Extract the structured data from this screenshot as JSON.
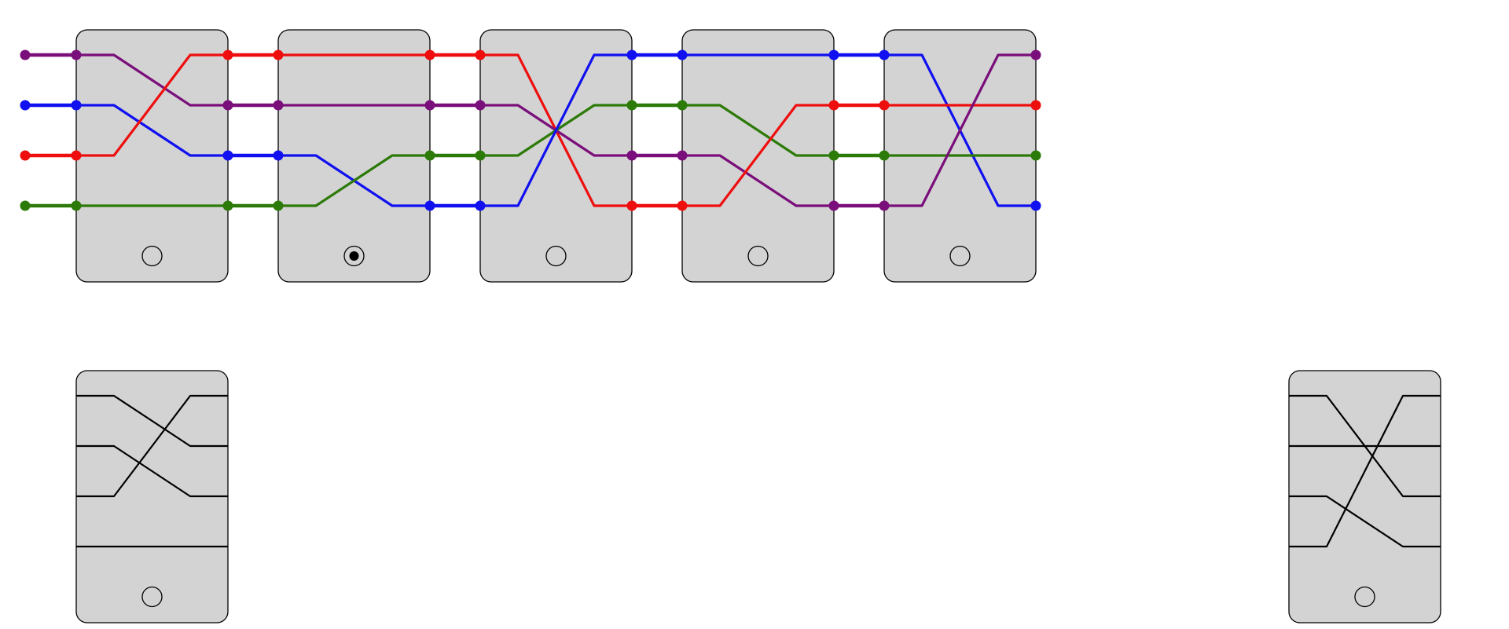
{
  "puzzle": {
    "wire_colors": [
      "#7a0e7a",
      "#1010f0",
      "#ee0e0e",
      "#2c7a08"
    ],
    "inputs": [
      0,
      1,
      2,
      3
    ],
    "chain": [
      {
        "perm": [
          1,
          2,
          0,
          3
        ],
        "selected": false
      },
      {
        "perm": [
          0,
          1,
          3,
          2
        ],
        "selected": true
      },
      {
        "perm": [
          3,
          2,
          1,
          0
        ],
        "selected": false
      },
      {
        "perm": [
          0,
          2,
          3,
          1
        ],
        "selected": false
      },
      {
        "perm": [
          3,
          1,
          2,
          0
        ],
        "selected": false
      }
    ],
    "spare_pieces": [
      {
        "slot": "left",
        "perm": [
          1,
          2,
          0,
          3
        ],
        "selected": false
      },
      {
        "slot": "right",
        "perm": [
          2,
          1,
          3,
          0
        ],
        "selected": false
      }
    ]
  }
}
